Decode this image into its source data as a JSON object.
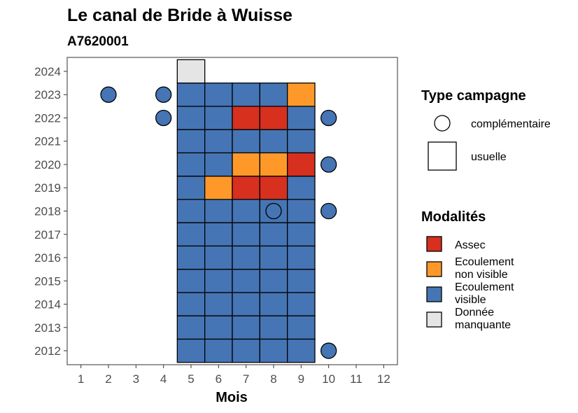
{
  "chart_data": {
    "type": "heatmap",
    "title": "Le canal de Bride à Wuisse",
    "subtitle": "A7620001",
    "xlabel": "Mois",
    "ylabel": "",
    "x_ticks": [
      "1",
      "2",
      "3",
      "4",
      "5",
      "6",
      "7",
      "8",
      "9",
      "10",
      "11",
      "12"
    ],
    "y_ticks": [
      "2012",
      "2013",
      "2014",
      "2015",
      "2016",
      "2017",
      "2018",
      "2019",
      "2020",
      "2021",
      "2022",
      "2023",
      "2024"
    ],
    "xlim": [
      0.5,
      12.5
    ],
    "ylim": [
      2011.4,
      2024.6
    ],
    "colors": {
      "Assec": "#d7301f",
      "Ecoulement non visible": "#fe9929",
      "Ecoulement visible": "#4575b4",
      "Donnée manquante": "#e5e5e5"
    },
    "usuelle": [
      {
        "year": 2012,
        "month": 5,
        "modalite": "Ecoulement visible"
      },
      {
        "year": 2012,
        "month": 6,
        "modalite": "Ecoulement visible"
      },
      {
        "year": 2012,
        "month": 7,
        "modalite": "Ecoulement visible"
      },
      {
        "year": 2012,
        "month": 8,
        "modalite": "Ecoulement visible"
      },
      {
        "year": 2012,
        "month": 9,
        "modalite": "Ecoulement visible"
      },
      {
        "year": 2013,
        "month": 5,
        "modalite": "Ecoulement visible"
      },
      {
        "year": 2013,
        "month": 6,
        "modalite": "Ecoulement visible"
      },
      {
        "year": 2013,
        "month": 7,
        "modalite": "Ecoulement visible"
      },
      {
        "year": 2013,
        "month": 8,
        "modalite": "Ecoulement visible"
      },
      {
        "year": 2013,
        "month": 9,
        "modalite": "Ecoulement visible"
      },
      {
        "year": 2014,
        "month": 5,
        "modalite": "Ecoulement visible"
      },
      {
        "year": 2014,
        "month": 6,
        "modalite": "Ecoulement visible"
      },
      {
        "year": 2014,
        "month": 7,
        "modalite": "Ecoulement visible"
      },
      {
        "year": 2014,
        "month": 8,
        "modalite": "Ecoulement visible"
      },
      {
        "year": 2014,
        "month": 9,
        "modalite": "Ecoulement visible"
      },
      {
        "year": 2015,
        "month": 5,
        "modalite": "Ecoulement visible"
      },
      {
        "year": 2015,
        "month": 6,
        "modalite": "Ecoulement visible"
      },
      {
        "year": 2015,
        "month": 7,
        "modalite": "Ecoulement visible"
      },
      {
        "year": 2015,
        "month": 8,
        "modalite": "Ecoulement visible"
      },
      {
        "year": 2015,
        "month": 9,
        "modalite": "Ecoulement visible"
      },
      {
        "year": 2016,
        "month": 5,
        "modalite": "Ecoulement visible"
      },
      {
        "year": 2016,
        "month": 6,
        "modalite": "Ecoulement visible"
      },
      {
        "year": 2016,
        "month": 7,
        "modalite": "Ecoulement visible"
      },
      {
        "year": 2016,
        "month": 8,
        "modalite": "Ecoulement visible"
      },
      {
        "year": 2016,
        "month": 9,
        "modalite": "Ecoulement visible"
      },
      {
        "year": 2017,
        "month": 5,
        "modalite": "Ecoulement visible"
      },
      {
        "year": 2017,
        "month": 6,
        "modalite": "Ecoulement visible"
      },
      {
        "year": 2017,
        "month": 7,
        "modalite": "Ecoulement visible"
      },
      {
        "year": 2017,
        "month": 8,
        "modalite": "Ecoulement visible"
      },
      {
        "year": 2017,
        "month": 9,
        "modalite": "Ecoulement visible"
      },
      {
        "year": 2018,
        "month": 5,
        "modalite": "Ecoulement visible"
      },
      {
        "year": 2018,
        "month": 6,
        "modalite": "Ecoulement visible"
      },
      {
        "year": 2018,
        "month": 7,
        "modalite": "Ecoulement visible"
      },
      {
        "year": 2018,
        "month": 8,
        "modalite": "Ecoulement visible"
      },
      {
        "year": 2018,
        "month": 9,
        "modalite": "Ecoulement visible"
      },
      {
        "year": 2019,
        "month": 5,
        "modalite": "Ecoulement visible"
      },
      {
        "year": 2019,
        "month": 6,
        "modalite": "Ecoulement non visible"
      },
      {
        "year": 2019,
        "month": 7,
        "modalite": "Assec"
      },
      {
        "year": 2019,
        "month": 8,
        "modalite": "Assec"
      },
      {
        "year": 2019,
        "month": 9,
        "modalite": "Ecoulement visible"
      },
      {
        "year": 2020,
        "month": 5,
        "modalite": "Ecoulement visible"
      },
      {
        "year": 2020,
        "month": 6,
        "modalite": "Ecoulement visible"
      },
      {
        "year": 2020,
        "month": 7,
        "modalite": "Ecoulement non visible"
      },
      {
        "year": 2020,
        "month": 8,
        "modalite": "Ecoulement non visible"
      },
      {
        "year": 2020,
        "month": 9,
        "modalite": "Assec"
      },
      {
        "year": 2021,
        "month": 5,
        "modalite": "Ecoulement visible"
      },
      {
        "year": 2021,
        "month": 6,
        "modalite": "Ecoulement visible"
      },
      {
        "year": 2021,
        "month": 7,
        "modalite": "Ecoulement visible"
      },
      {
        "year": 2021,
        "month": 8,
        "modalite": "Ecoulement visible"
      },
      {
        "year": 2021,
        "month": 9,
        "modalite": "Ecoulement visible"
      },
      {
        "year": 2022,
        "month": 5,
        "modalite": "Ecoulement visible"
      },
      {
        "year": 2022,
        "month": 6,
        "modalite": "Ecoulement visible"
      },
      {
        "year": 2022,
        "month": 7,
        "modalite": "Assec"
      },
      {
        "year": 2022,
        "month": 8,
        "modalite": "Assec"
      },
      {
        "year": 2022,
        "month": 9,
        "modalite": "Ecoulement visible"
      },
      {
        "year": 2023,
        "month": 5,
        "modalite": "Ecoulement visible"
      },
      {
        "year": 2023,
        "month": 6,
        "modalite": "Ecoulement visible"
      },
      {
        "year": 2023,
        "month": 7,
        "modalite": "Ecoulement visible"
      },
      {
        "year": 2023,
        "month": 8,
        "modalite": "Ecoulement visible"
      },
      {
        "year": 2023,
        "month": 9,
        "modalite": "Ecoulement non visible"
      },
      {
        "year": 2024,
        "month": 5,
        "modalite": "Donnée manquante"
      }
    ],
    "complementaire": [
      {
        "year": 2023,
        "month": 2,
        "modalite": "Ecoulement visible"
      },
      {
        "year": 2023,
        "month": 4,
        "modalite": "Ecoulement visible"
      },
      {
        "year": 2022,
        "month": 4,
        "modalite": "Ecoulement visible"
      },
      {
        "year": 2022,
        "month": 10,
        "modalite": "Ecoulement visible"
      },
      {
        "year": 2020,
        "month": 10,
        "modalite": "Ecoulement visible"
      },
      {
        "year": 2018,
        "month": 8,
        "modalite": "Ecoulement visible"
      },
      {
        "year": 2018,
        "month": 10,
        "modalite": "Ecoulement visible"
      },
      {
        "year": 2012,
        "month": 10,
        "modalite": "Ecoulement visible"
      }
    ],
    "legend_placement": "right",
    "grid": false
  },
  "legend": {
    "type_title": "Type campagne",
    "type_items": [
      "complémentaire",
      "usuelle"
    ],
    "modalites_title": "Modalités",
    "modalites_items": [
      {
        "lines": [
          "Assec"
        ],
        "color": "#d7301f"
      },
      {
        "lines": [
          "Ecoulement",
          "non visible"
        ],
        "color": "#fe9929"
      },
      {
        "lines": [
          "Ecoulement",
          "visible"
        ],
        "color": "#4575b4"
      },
      {
        "lines": [
          "Donnée",
          "manquante"
        ],
        "color": "#e5e5e5"
      }
    ]
  }
}
